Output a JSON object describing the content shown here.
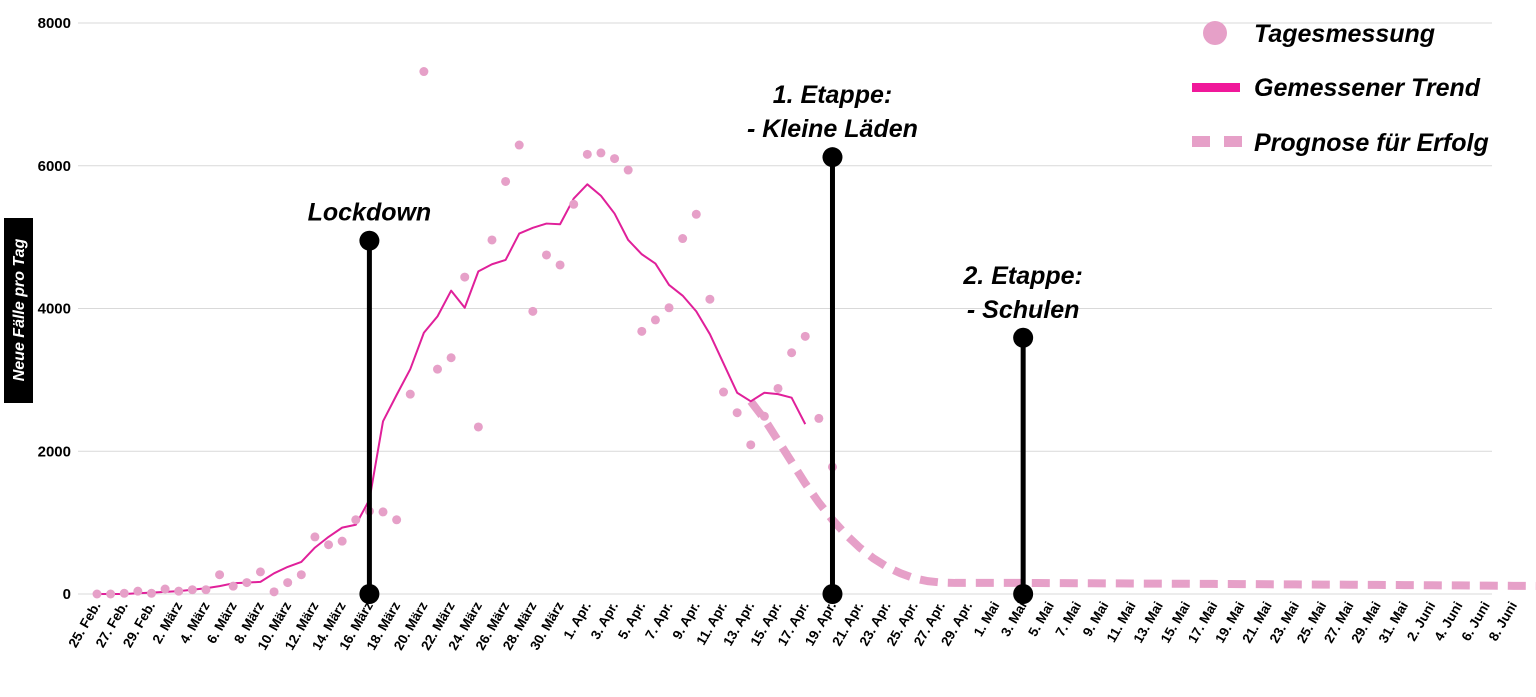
{
  "chart_data": {
    "type": "line",
    "ylabel": "Neue Fälle pro Tag",
    "ylim": [
      0,
      8000
    ],
    "yticks": [
      0,
      2000,
      4000,
      6000,
      8000
    ],
    "grid": true,
    "legend_position": "top-right",
    "x_labels": [
      "25. Feb.",
      "27. Feb.",
      "29. Feb.",
      "2. März",
      "4. März",
      "6. März",
      "8. März",
      "10. März",
      "12. März",
      "14. März",
      "16. März",
      "18. März",
      "20. März",
      "22. März",
      "24. März",
      "26. März",
      "28. März",
      "30. März",
      "1. Apr.",
      "3. Apr.",
      "5. Apr.",
      "7. Apr.",
      "9. Apr.",
      "11. Apr.",
      "13. Apr.",
      "15. Apr.",
      "17. Apr.",
      "19. Apr.",
      "21. Apr.",
      "23. Apr.",
      "25. Apr.",
      "27. Apr.",
      "29. Apr.",
      "1. Mai",
      "3. Mai",
      "5. Mai",
      "7. Mai",
      "9. Mai",
      "11. Mai",
      "13. Mai",
      "15. Mai",
      "17. Mai",
      "19. Mai",
      "21. Mai",
      "23. Mai",
      "25. Mai",
      "27. Mai",
      "29. Mai",
      "31. Mai",
      "2. Juni",
      "4. Juni",
      "6. Juni",
      "8. Juni"
    ],
    "series": [
      {
        "name": "Tagesmessung",
        "kind": "scatter",
        "color": "#e6a0c8",
        "values": [
          0,
          0,
          10,
          40,
          10,
          70,
          40,
          60,
          60,
          270,
          110,
          160,
          310,
          30,
          160,
          270,
          800,
          690,
          740,
          1040,
          1160,
          1150,
          1040,
          2800,
          7320,
          3150,
          3310,
          4440,
          2340,
          4960,
          5780,
          6290,
          3960,
          4750,
          4610,
          5460,
          6160,
          6180,
          6100,
          5940,
          3680,
          3840,
          4010,
          4980,
          5320,
          4130,
          2830,
          2540,
          2090,
          2490,
          2880,
          3380,
          3610,
          2460,
          1780
        ]
      },
      {
        "name": "Gemessener Trend",
        "kind": "line",
        "color": "#e0209a",
        "values": [
          0,
          0,
          0,
          10,
          20,
          30,
          40,
          60,
          80,
          110,
          150,
          160,
          170,
          290,
          380,
          450,
          650,
          800,
          930,
          970,
          1320,
          2420,
          2790,
          3150,
          3660,
          3890,
          4250,
          4010,
          4520,
          4620,
          4680,
          5050,
          5130,
          5190,
          5180,
          5540,
          5740,
          5580,
          5330,
          4960,
          4760,
          4630,
          4330,
          4180,
          3960,
          3640,
          3230,
          2820,
          2700,
          2820,
          2800,
          2750,
          2380
        ]
      },
      {
        "name": "Prognose für Erfolg",
        "kind": "dashed-line",
        "color": "#e6a0c8",
        "x_start_index": 48,
        "values": [
          2700,
          2450,
          2150,
          1850,
          1550,
          1280,
          1040,
          830,
          650,
          500,
          380,
          290,
          220,
          180,
          160,
          155,
          155,
          155,
          155,
          155,
          155,
          154,
          153,
          152,
          151,
          150,
          149,
          148,
          147,
          146,
          145,
          144,
          143,
          142,
          141,
          140,
          139,
          138,
          136,
          135,
          134,
          133,
          132,
          131,
          130,
          128,
          127,
          126,
          125,
          124,
          122,
          121,
          120,
          118,
          117,
          116,
          114,
          113,
          112
        ]
      }
    ],
    "events": [
      {
        "label_lines": [
          "Lockdown"
        ],
        "day_index": 20,
        "value": 4950
      },
      {
        "label_lines": [
          "1. Etappe:",
          "- Kleine Läden"
        ],
        "day_index": 54,
        "value": 6120
      },
      {
        "label_lines": [
          "2. Etappe:",
          "- Schulen"
        ],
        "day_index": 68,
        "value": 3590
      }
    ]
  }
}
